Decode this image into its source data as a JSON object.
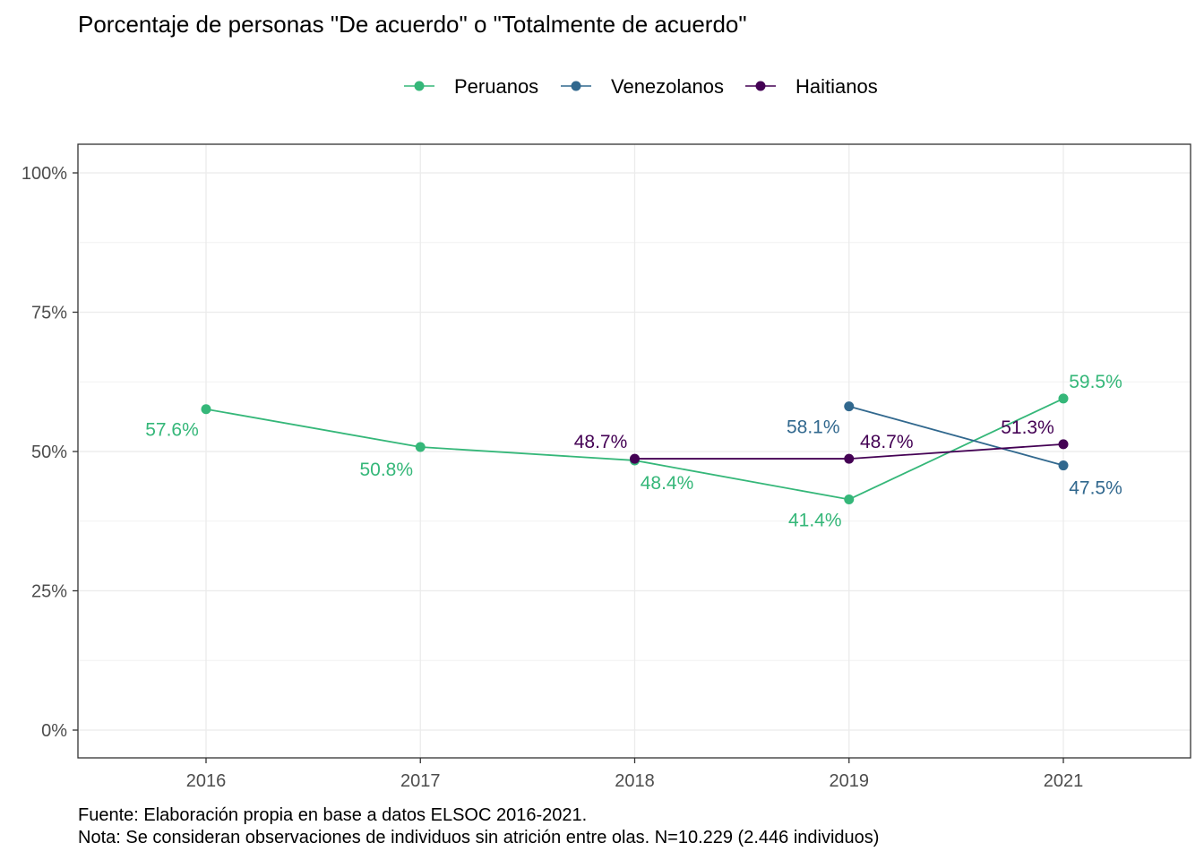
{
  "chart_data": {
    "type": "line",
    "title": "Porcentaje de personas \"De acuerdo\" o \"Totalmente de acuerdo\"",
    "xlabel": "",
    "ylabel": "",
    "categories": [
      "2016",
      "2017",
      "2018",
      "2019",
      "2021"
    ],
    "ylim": [
      0,
      100
    ],
    "yticks": [
      "0%",
      "25%",
      "50%",
      "75%",
      "100%"
    ],
    "grid": true,
    "legend_position": "top",
    "series": [
      {
        "name": "Peruanos",
        "color": "#35b779",
        "values": [
          57.6,
          50.8,
          48.4,
          41.4,
          59.5
        ],
        "labels": [
          "57.6%",
          "50.8%",
          "48.4%",
          "41.4%",
          "59.5%"
        ]
      },
      {
        "name": "Venezolanos",
        "color": "#31688e",
        "values": [
          null,
          null,
          null,
          58.1,
          47.5
        ],
        "labels": [
          null,
          null,
          null,
          "58.1%",
          "47.5%"
        ]
      },
      {
        "name": "Haitianos",
        "color": "#440154",
        "values": [
          null,
          null,
          48.7,
          48.7,
          51.3
        ],
        "labels": [
          null,
          null,
          "48.7%",
          "48.7%",
          "51.3%"
        ]
      }
    ],
    "caption": [
      "Fuente: Elaboración propia en base a datos ELSOC 2016-2021.",
      "Nota: Se consideran observaciones de individuos sin atrición entre olas. N=10.229 (2.446 individuos)"
    ]
  }
}
